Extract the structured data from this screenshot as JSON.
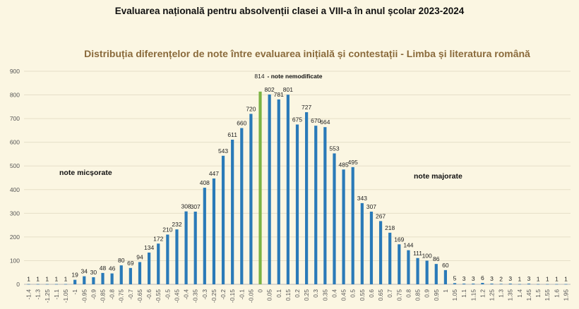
{
  "header": {
    "title": "Evaluarea națională pentru absolvenții clasei a VIII-a în anul școlar 2023-2024"
  },
  "colors": {
    "background": "#fbf6e2",
    "bar": "#2a7ab8",
    "highlight_bar": "#7cb342",
    "title_color": "#8a6a3b"
  },
  "chart_data": {
    "type": "bar",
    "title": "Distribuția diferențelor de note între evaluarea inițială și contestații - Limba și literatura română",
    "xlabel": "",
    "ylabel": "",
    "ylim": [
      0,
      900
    ],
    "yticks": [
      "0",
      "100",
      "200",
      "300",
      "400",
      "500",
      "600",
      "700",
      "800",
      "900"
    ],
    "grid": true,
    "categories": [
      "-1.4",
      "-1.3",
      "-1.25",
      "-1.1",
      "-1.05",
      "-1",
      "-0.95",
      "-0.9",
      "-0.85",
      "-0.8",
      "-0.75",
      "-0.7",
      "-0.65",
      "-0.6",
      "-0.55",
      "-0.5",
      "-0.45",
      "-0.4",
      "-0.35",
      "-0.3",
      "-0.25",
      "-0.2",
      "-0.15",
      "-0.1",
      "-0.05",
      "0",
      "0.05",
      "0.1",
      "0.15",
      "0.2",
      "0.25",
      "0.3",
      "0.35",
      "0.4",
      "0.45",
      "0.5",
      "0.55",
      "0.6",
      "0.65",
      "0.7",
      "0.75",
      "0.8",
      "0.85",
      "0.9",
      "0.95",
      "1",
      "1.05",
      "1.1",
      "1.15",
      "1.2",
      "1.25",
      "1.3",
      "1.35",
      "1.4",
      "1.45",
      "1.5",
      "1.55",
      "1.6",
      "1.95"
    ],
    "values": [
      1,
      1,
      1,
      1,
      1,
      19,
      34,
      30,
      48,
      46,
      80,
      69,
      94,
      134,
      172,
      210,
      232,
      308,
      307,
      408,
      447,
      543,
      611,
      660,
      720,
      814,
      802,
      781,
      801,
      675,
      727,
      670,
      664,
      553,
      485,
      495,
      343,
      307,
      267,
      218,
      169,
      144,
      111,
      100,
      86,
      60,
      5,
      3,
      3,
      6,
      3,
      2,
      3,
      1,
      3,
      1,
      1,
      1,
      1
    ],
    "highlight_category": "0",
    "annotations": {
      "unchanged": "- note nemodificate",
      "decreased": "note micșorate",
      "increased": "note majorate"
    }
  }
}
